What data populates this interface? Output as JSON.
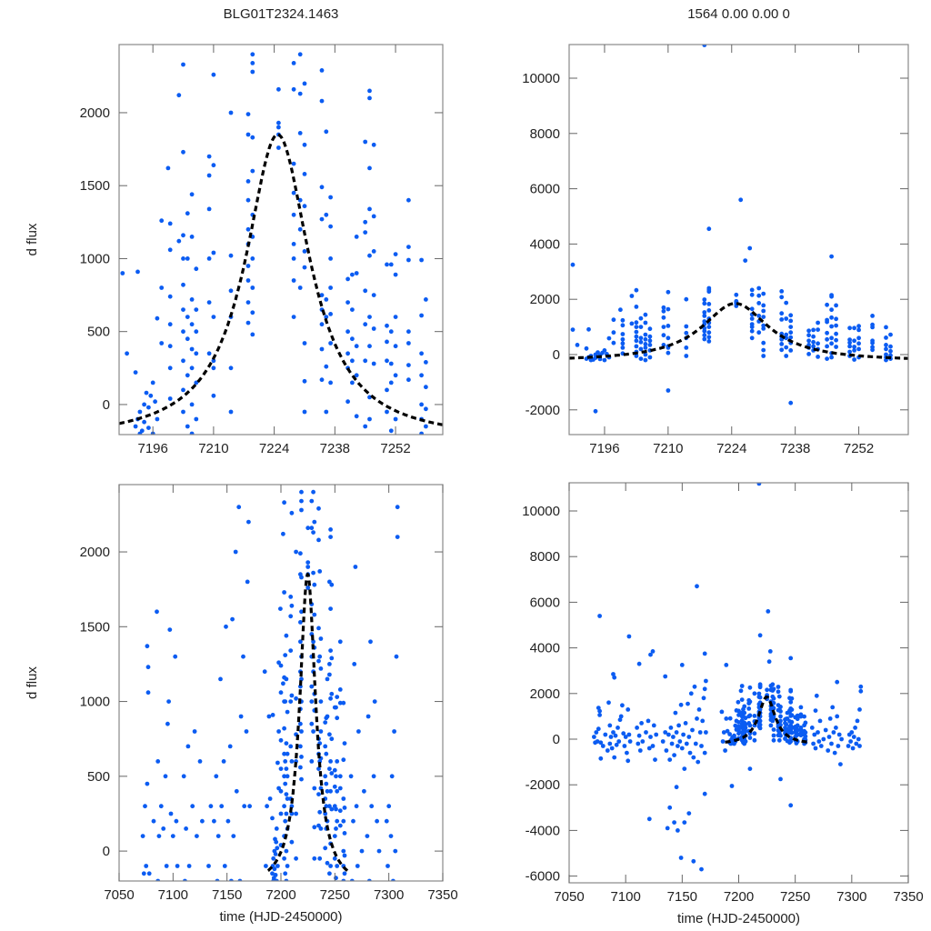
{
  "chart_data": [
    {
      "id": "top-left",
      "type": "scatter",
      "title": "BLG01T2324.1463",
      "xlabel": "",
      "ylabel": "d flux",
      "xlim": [
        7188.2,
        7262.9
      ],
      "ylim": [
        -206,
        2467
      ],
      "xticks": [
        7196,
        7210,
        7224,
        7238,
        7252
      ],
      "yticks": [
        0,
        500,
        1000,
        1500,
        2000
      ],
      "show_model": true
    },
    {
      "id": "top-right",
      "type": "scatter",
      "title": "1564  0.00  0.00  0",
      "xlabel": "",
      "ylabel": "",
      "xlim": [
        7188.2,
        7262.9
      ],
      "ylim": [
        -2895,
        11217
      ],
      "xticks": [
        7196,
        7210,
        7224,
        7238,
        7252
      ],
      "yticks": [
        -2000,
        0,
        2000,
        4000,
        6000,
        8000,
        10000
      ],
      "show_model": true
    },
    {
      "id": "bottom-left",
      "type": "scatter",
      "title": "",
      "xlabel": "time (HJD-2450000)",
      "ylabel": "d flux",
      "xlim": [
        7050,
        7350
      ],
      "ylim": [
        -200,
        2450
      ],
      "xticks": [
        7050,
        7100,
        7150,
        7200,
        7250,
        7300,
        7350
      ],
      "yticks": [
        0,
        500,
        1000,
        1500,
        2000
      ],
      "show_model": true
    },
    {
      "id": "bottom-right",
      "type": "scatter",
      "title": "",
      "xlabel": "time (HJD-2450000)",
      "ylabel": "",
      "xlim": [
        7050,
        7350
      ],
      "ylim": [
        -6295,
        11235
      ],
      "xticks": [
        7050,
        7100,
        7150,
        7200,
        7250,
        7300,
        7350
      ],
      "yticks": [
        -6000,
        -4000,
        -2000,
        0,
        2000,
        4000,
        6000,
        8000,
        10000
      ],
      "show_model": true
    }
  ],
  "model": {
    "type": "lorentzian-like peak",
    "t0": 7224.8,
    "peak": 1850,
    "baseline": -250,
    "width_days": 9,
    "t_range": [
      7188,
      7263
    ]
  },
  "colors": {
    "points": "#0b5cf2",
    "model": "#000000",
    "frame": "#888888"
  },
  "points": [
    [
      7192,
      -150
    ],
    [
      7192.5,
      -100
    ],
    [
      7193,
      -200
    ],
    [
      7193,
      -50
    ],
    [
      7193.5,
      -180
    ],
    [
      7194,
      0
    ],
    [
      7194,
      -120
    ],
    [
      7194.5,
      80
    ],
    [
      7195,
      -160
    ],
    [
      7195,
      -20
    ],
    [
      7195.5,
      60
    ],
    [
      7196,
      -200
    ],
    [
      7196,
      150
    ],
    [
      7196.5,
      20
    ],
    [
      7197,
      -100
    ],
    [
      7192,
      220
    ],
    [
      7192.5,
      910
    ],
    [
      7197,
      590
    ],
    [
      7198,
      420
    ],
    [
      7198,
      800
    ],
    [
      7198,
      1260
    ],
    [
      7190,
      350
    ],
    [
      7200,
      250
    ],
    [
      7200,
      400
    ],
    [
      7200,
      550
    ],
    [
      7200,
      1060
    ],
    [
      7200,
      1240
    ],
    [
      7200,
      740
    ],
    [
      7200,
      40
    ],
    [
      7199.5,
      1620
    ],
    [
      7203,
      -50
    ],
    [
      7203,
      100
    ],
    [
      7203,
      300
    ],
    [
      7203,
      500
    ],
    [
      7203,
      650
    ],
    [
      7203,
      820
    ],
    [
      7203,
      1000
    ],
    [
      7203,
      1160
    ],
    [
      7203,
      1730
    ],
    [
      7203,
      2330
    ],
    [
      7202,
      2120
    ],
    [
      7202,
      1120
    ],
    [
      7204,
      200
    ],
    [
      7204,
      450
    ],
    [
      7204,
      600
    ],
    [
      7204,
      -150
    ],
    [
      7204,
      1310
    ],
    [
      7204,
      1000
    ],
    [
      7205,
      -200
    ],
    [
      7205,
      0
    ],
    [
      7205,
      250
    ],
    [
      7205,
      380
    ],
    [
      7205,
      550
    ],
    [
      7205,
      720
    ],
    [
      7205,
      1440
    ],
    [
      7205,
      1150
    ],
    [
      7206,
      -100
    ],
    [
      7206,
      150
    ],
    [
      7206,
      350
    ],
    [
      7206,
      500
    ],
    [
      7206,
      650
    ],
    [
      7206,
      930
    ],
    [
      7209,
      700
    ],
    [
      7209,
      350
    ],
    [
      7209,
      1000
    ],
    [
      7209,
      1340
    ],
    [
      7209,
      1570
    ],
    [
      7209,
      1700
    ],
    [
      7210,
      600
    ],
    [
      7210,
      300
    ],
    [
      7210,
      250
    ],
    [
      7210,
      1040
    ],
    [
      7210,
      60
    ],
    [
      7210,
      1640
    ],
    [
      7210,
      2260
    ],
    [
      7214,
      -50
    ],
    [
      7214,
      250
    ],
    [
      7214,
      600
    ],
    [
      7214,
      1020
    ],
    [
      7214,
      2000
    ],
    [
      7214,
      780
    ],
    [
      7218,
      560
    ],
    [
      7218,
      700
    ],
    [
      7218,
      850
    ],
    [
      7218,
      950
    ],
    [
      7218,
      1100
    ],
    [
      7218,
      1200
    ],
    [
      7218,
      1400
    ],
    [
      7218,
      1530
    ],
    [
      7218,
      1850
    ],
    [
      7218,
      1990
    ],
    [
      7219,
      800
    ],
    [
      7219,
      1000
    ],
    [
      7219,
      1150
    ],
    [
      7219,
      1300
    ],
    [
      7219,
      1600
    ],
    [
      7219,
      1830
    ],
    [
      7219,
      2280
    ],
    [
      7219,
      2340
    ],
    [
      7219,
      2400
    ],
    [
      7219,
      630
    ],
    [
      7219,
      480
    ],
    [
      7225,
      1760
    ],
    [
      7225,
      1850
    ],
    [
      7225,
      1900
    ],
    [
      7225,
      1930
    ],
    [
      7225,
      2160
    ],
    [
      7228.5,
      850
    ],
    [
      7228.5,
      1000
    ],
    [
      7228.5,
      1100
    ],
    [
      7228.5,
      1300
    ],
    [
      7228.5,
      1450
    ],
    [
      7228.5,
      1650
    ],
    [
      7228.5,
      2340
    ],
    [
      7228.5,
      2160
    ],
    [
      7228.5,
      600
    ],
    [
      7230,
      800
    ],
    [
      7230,
      1200
    ],
    [
      7230,
      1400
    ],
    [
      7230,
      1860
    ],
    [
      7230,
      2400
    ],
    [
      7230,
      2130
    ],
    [
      7231,
      -50
    ],
    [
      7231,
      160
    ],
    [
      7231,
      420
    ],
    [
      7231,
      940
    ],
    [
      7231,
      1050
    ],
    [
      7231,
      1360
    ],
    [
      7231,
      1580
    ],
    [
      7231,
      1780
    ],
    [
      7231,
      2200
    ],
    [
      7235,
      170
    ],
    [
      7235,
      380
    ],
    [
      7235,
      550
    ],
    [
      7235,
      650
    ],
    [
      7235,
      750
    ],
    [
      7235,
      1270
    ],
    [
      7235,
      1490
    ],
    [
      7235,
      2080
    ],
    [
      7235,
      2290
    ],
    [
      7236,
      600
    ],
    [
      7236,
      720
    ],
    [
      7236,
      260
    ],
    [
      7236,
      -50
    ],
    [
      7236,
      1870
    ],
    [
      7236,
      1300
    ],
    [
      7237,
      150
    ],
    [
      7237,
      420
    ],
    [
      7237,
      620
    ],
    [
      7237,
      800
    ],
    [
      7237,
      1000
    ],
    [
      7237,
      1220
    ],
    [
      7237,
      1420
    ],
    [
      7241,
      20
    ],
    [
      7241,
      250
    ],
    [
      7241,
      350
    ],
    [
      7241,
      500
    ],
    [
      7241,
      700
    ],
    [
      7241,
      860
    ],
    [
      7242,
      150
    ],
    [
      7242,
      300
    ],
    [
      7242,
      450
    ],
    [
      7242,
      650
    ],
    [
      7242,
      890
    ],
    [
      7243,
      -80
    ],
    [
      7243,
      200
    ],
    [
      7243,
      400
    ],
    [
      7243,
      1150
    ],
    [
      7243,
      900
    ],
    [
      7245,
      -150
    ],
    [
      7245,
      300
    ],
    [
      7245,
      550
    ],
    [
      7245,
      780
    ],
    [
      7245,
      1180
    ],
    [
      7245,
      1250
    ],
    [
      7245,
      1800
    ],
    [
      7246,
      -100
    ],
    [
      7246,
      50
    ],
    [
      7246,
      400
    ],
    [
      7246,
      600
    ],
    [
      7246,
      1020
    ],
    [
      7246,
      1340
    ],
    [
      7246,
      1620
    ],
    [
      7246,
      2100
    ],
    [
      7246,
      2150
    ],
    [
      7247,
      280
    ],
    [
      7247,
      520
    ],
    [
      7247,
      750
    ],
    [
      7247,
      1050
    ],
    [
      7247,
      1290
    ],
    [
      7247,
      1780
    ],
    [
      7250,
      -50
    ],
    [
      7250,
      100
    ],
    [
      7250,
      300
    ],
    [
      7250,
      430
    ],
    [
      7250,
      960
    ],
    [
      7250,
      540
    ],
    [
      7251,
      -180
    ],
    [
      7251,
      150
    ],
    [
      7251,
      280
    ],
    [
      7251,
      500
    ],
    [
      7251,
      960
    ],
    [
      7252,
      -100
    ],
    [
      7252,
      200
    ],
    [
      7252,
      400
    ],
    [
      7252,
      600
    ],
    [
      7252,
      890
    ],
    [
      7252,
      1030
    ],
    [
      7255,
      170
    ],
    [
      7255,
      270
    ],
    [
      7255,
      420
    ],
    [
      7255,
      500
    ],
    [
      7255,
      990
    ],
    [
      7255,
      1080
    ],
    [
      7255,
      1400
    ],
    [
      7258,
      -200
    ],
    [
      7258,
      -100
    ],
    [
      7258,
      0
    ],
    [
      7258,
      200
    ],
    [
      7258,
      350
    ],
    [
      7258,
      610
    ],
    [
      7258,
      990
    ],
    [
      7259,
      -150
    ],
    [
      7259,
      -30
    ],
    [
      7259,
      120
    ],
    [
      7259,
      290
    ],
    [
      7259,
      720
    ],
    [
      7218,
      11200
    ],
    [
      7226,
      5600
    ],
    [
      7219,
      4550
    ],
    [
      7237,
      -1750
    ],
    [
      7246,
      -2900
    ],
    [
      7246,
      3550
    ],
    [
      7194,
      -2050
    ],
    [
      7210,
      -1300
    ],
    [
      7228,
      3850
    ],
    [
      7227,
      3400
    ],
    [
      7072,
      100
    ],
    [
      7073,
      -150
    ],
    [
      7074,
      300
    ],
    [
      7075,
      -100
    ],
    [
      7076,
      1370
    ],
    [
      7077,
      1230
    ],
    [
      7077,
      1060
    ],
    [
      7076,
      450
    ],
    [
      7078,
      -150
    ],
    [
      7077,
      5400
    ],
    [
      7078,
      -850
    ],
    [
      7080,
      -300
    ],
    [
      7082,
      200
    ],
    [
      7084,
      -500
    ],
    [
      7085,
      1600
    ],
    [
      7086,
      600
    ],
    [
      7086,
      -200
    ],
    [
      7087,
      100
    ],
    [
      7088,
      -400
    ],
    [
      7089,
      300
    ],
    [
      7090,
      -800
    ],
    [
      7091,
      150
    ],
    [
      7092,
      -250
    ],
    [
      7093,
      500
    ],
    [
      7094,
      -100
    ],
    [
      7095,
      850
    ],
    [
      7096,
      1000
    ],
    [
      7097,
      1480
    ],
    [
      7098,
      250
    ],
    [
      7099,
      -300
    ],
    [
      7100,
      100
    ],
    [
      7101,
      -600
    ],
    [
      7102,
      1300
    ],
    [
      7102,
      -950
    ],
    [
      7103,
      200
    ],
    [
      7104,
      -100
    ],
    [
      7110,
      500
    ],
    [
      7111,
      -200
    ],
    [
      7112,
      150
    ],
    [
      7113,
      -500
    ],
    [
      7114,
      700
    ],
    [
      7115,
      -100
    ],
    [
      7118,
      300
    ],
    [
      7120,
      800
    ],
    [
      7121,
      -400
    ],
    [
      7122,
      100
    ],
    [
      7124,
      -300
    ],
    [
      7125,
      600
    ],
    [
      7126,
      -900
    ],
    [
      7127,
      200
    ],
    [
      7133,
      -100
    ],
    [
      7135,
      300
    ],
    [
      7136,
      -500
    ],
    [
      7138,
      200
    ],
    [
      7139,
      -900
    ],
    [
      7140,
      500
    ],
    [
      7141,
      -200
    ],
    [
      7142,
      100
    ],
    [
      7143,
      -700
    ],
    [
      7144,
      1150
    ],
    [
      7145,
      300
    ],
    [
      7146,
      -300
    ],
    [
      7147,
      600
    ],
    [
      7148,
      -100
    ],
    [
      7149,
      1500
    ],
    [
      7150,
      -400
    ],
    [
      7151,
      200
    ],
    [
      7152,
      -1300
    ],
    [
      7153,
      700
    ],
    [
      7154,
      -200
    ],
    [
      7155,
      1550
    ],
    [
      7156,
      100
    ],
    [
      7157,
      -600
    ],
    [
      7158,
      2000
    ],
    [
      7159,
      400
    ],
    [
      7160,
      -800
    ],
    [
      7161,
      2300
    ],
    [
      7162,
      -200
    ],
    [
      7163,
      900
    ],
    [
      7164,
      -1000
    ],
    [
      7165,
      1300
    ],
    [
      7166,
      300
    ],
    [
      7167,
      -300
    ],
    [
      7168,
      800
    ],
    [
      7169,
      1800
    ],
    [
      7170,
      -600
    ],
    [
      7170,
      2200
    ],
    [
      7171,
      300
    ],
    [
      7171,
      2550
    ],
    [
      7185,
      1200
    ],
    [
      7186,
      -100
    ],
    [
      7187,
      300
    ],
    [
      7188,
      -500
    ],
    [
      7189,
      900
    ],
    [
      7189,
      3250
    ],
    [
      7163,
      6700
    ],
    [
      7103,
      4500
    ],
    [
      7122,
      3700
    ],
    [
      7124,
      3850
    ],
    [
      7112,
      3300
    ],
    [
      7135,
      2750
    ],
    [
      7150,
      3250
    ],
    [
      7170,
      3750
    ],
    [
      7121,
      -3500
    ],
    [
      7139,
      -3000
    ],
    [
      7137,
      -3900
    ],
    [
      7143,
      -3650
    ],
    [
      7146,
      -4000
    ],
    [
      7149,
      -5200
    ],
    [
      7152,
      -3650
    ],
    [
      7156,
      -3250
    ],
    [
      7160,
      -5350
    ],
    [
      7162,
      -6300
    ],
    [
      7167,
      -5700
    ],
    [
      7170,
      -2400
    ],
    [
      7089,
      2850
    ],
    [
      7090,
      2700
    ],
    [
      7287,
      2500
    ],
    [
      7145,
      -2100
    ],
    [
      7265,
      500
    ],
    [
      7266,
      -200
    ],
    [
      7267,
      200
    ],
    [
      7268,
      -400
    ],
    [
      7268,
      1250
    ],
    [
      7269,
      1900
    ],
    [
      7270,
      300
    ],
    [
      7271,
      -100
    ],
    [
      7272,
      800
    ],
    [
      7273,
      -300
    ],
    [
      7275,
      0
    ],
    [
      7277,
      400
    ],
    [
      7279,
      -500
    ],
    [
      7280,
      100
    ],
    [
      7281,
      900
    ],
    [
      7282,
      -200
    ],
    [
      7283,
      1400
    ],
    [
      7284,
      300
    ],
    [
      7285,
      -600
    ],
    [
      7286,
      500
    ],
    [
      7287,
      1000
    ],
    [
      7288,
      -300
    ],
    [
      7289,
      200
    ],
    [
      7290,
      -1100
    ],
    [
      7291,
      0
    ],
    [
      7297,
      -300
    ],
    [
      7298,
      200
    ],
    [
      7299,
      -100
    ],
    [
      7300,
      300
    ],
    [
      7301,
      -400
    ],
    [
      7302,
      100
    ],
    [
      7303,
      500
    ],
    [
      7304,
      -200
    ],
    [
      7305,
      800
    ],
    [
      7306,
      0
    ],
    [
      7307,
      1300
    ],
    [
      7308,
      2300
    ],
    [
      7308,
      2100
    ],
    [
      7307,
      -300
    ]
  ]
}
